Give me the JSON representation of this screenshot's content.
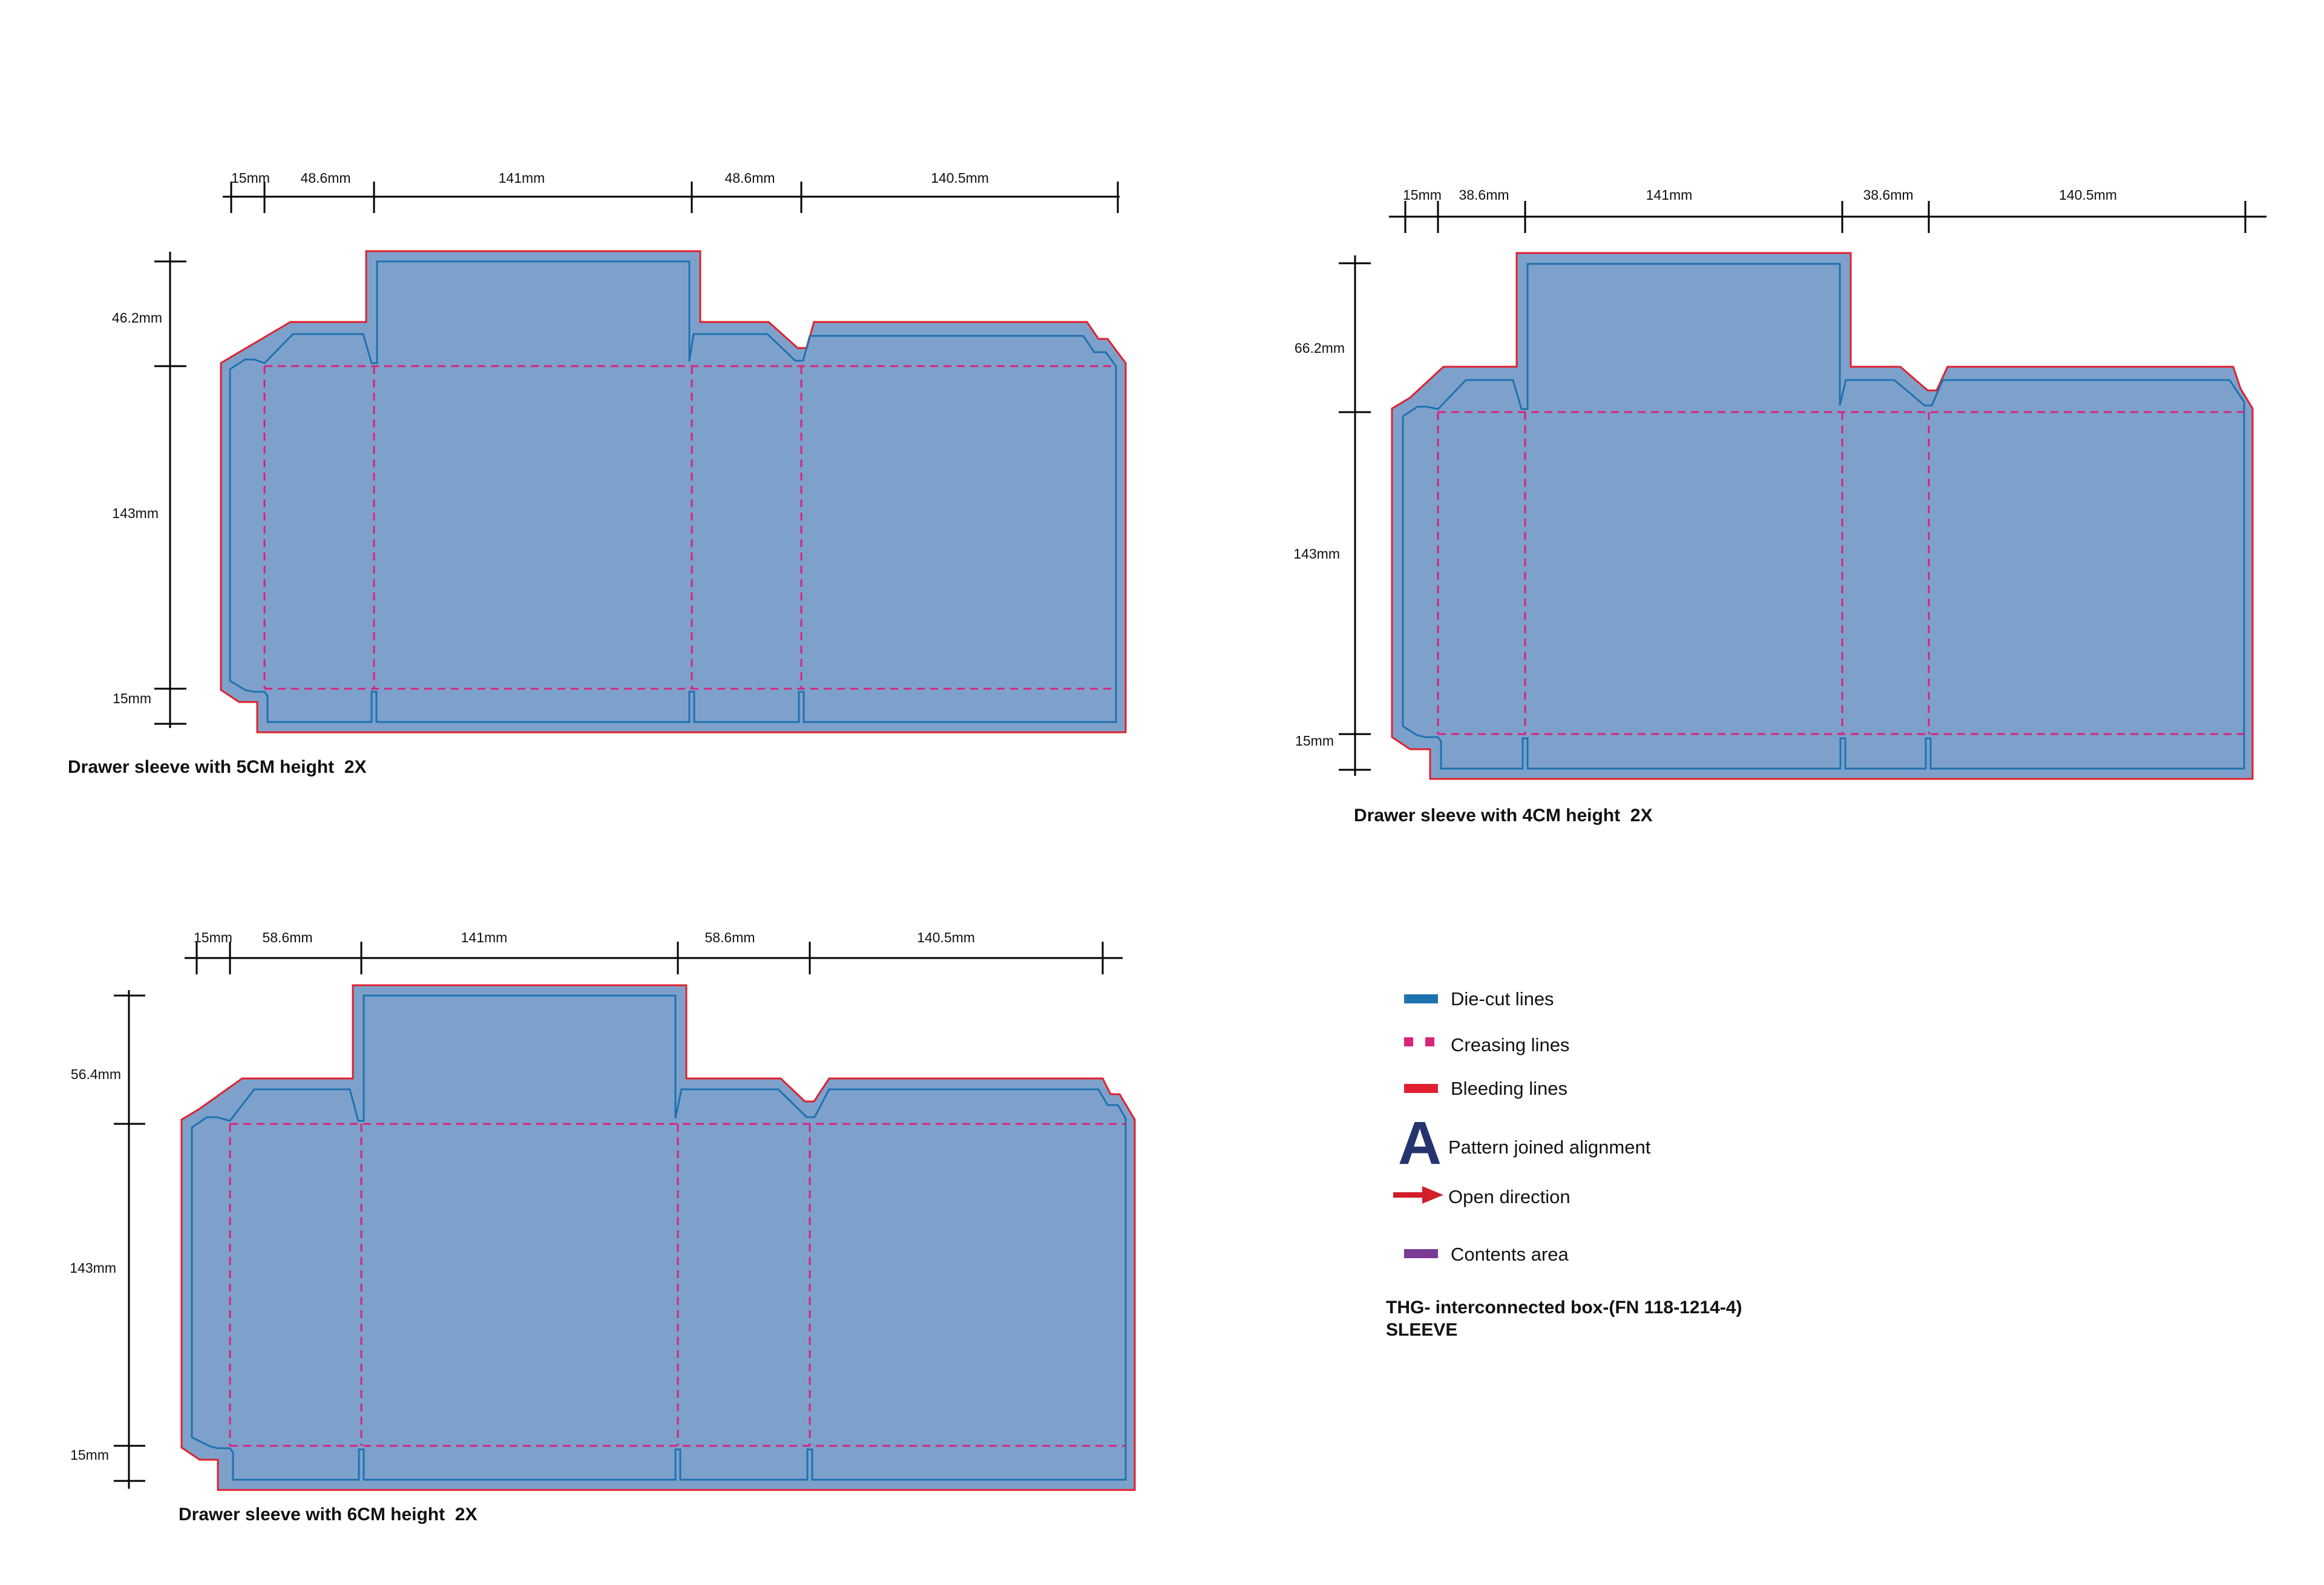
{
  "dielines": [
    {
      "id": "5cm",
      "caption": "Drawer sleeve with 5CM height  2X",
      "widths": [
        "15mm",
        "48.6mm",
        "141mm",
        "48.6mm",
        "140.5mm"
      ],
      "heights": [
        "46.2mm",
        "143mm",
        "15mm"
      ]
    },
    {
      "id": "4cm",
      "caption": "Drawer sleeve with 4CM height  2X",
      "widths": [
        "15mm",
        "38.6mm",
        "141mm",
        "38.6mm",
        "140.5mm"
      ],
      "heights": [
        "66.2mm",
        "143mm",
        "15mm"
      ]
    },
    {
      "id": "6cm",
      "caption": "Drawer sleeve with 6CM height  2X",
      "widths": [
        "15mm",
        "58.6mm",
        "141mm",
        "58.6mm",
        "140.5mm"
      ],
      "heights": [
        "56.4mm",
        "143mm",
        "15mm"
      ]
    }
  ],
  "legend": {
    "die_cut": "Die-cut lines",
    "creasing": "Creasing lines",
    "bleeding": "Bleeding lines",
    "pattern_symbol": "A",
    "pattern": "Pattern joined alignment",
    "open_direction": "Open direction",
    "contents": "Contents area",
    "title_line1": "THG- interconnected box-(FN 118-1214-4)",
    "title_line2": "SLEEVE"
  },
  "colors": {
    "die_cut": "#1f72b0",
    "creasing": "#d8247a",
    "bleeding": "#e0202e",
    "pattern": "#26346e",
    "open_direction": "#d21e2a",
    "contents": "#7b3a96",
    "fill": "#7ea1cc"
  }
}
